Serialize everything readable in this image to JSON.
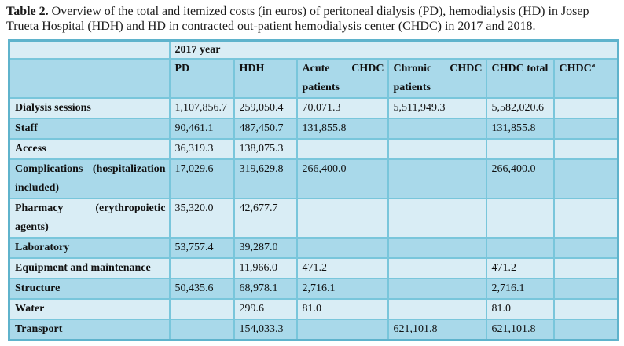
{
  "title": {
    "bold": "Table 2.",
    "text": "Overview of the total and itemized costs (in euros) of peritoneal dialysis (PD), hemodialysis (HD) in Josep Trueta Hospital (HDH) and HD in contracted out-patient hemodialysis center (CHDC) in 2017 and 2018."
  },
  "table": {
    "year_header": "2017 year",
    "columns": [
      "PD",
      "HDH",
      "Acute CHDC patients",
      "Chronic CHDC patients",
      "CHDC total"
    ],
    "last_column": {
      "label": "CHDC",
      "sup": "a"
    },
    "rows": [
      {
        "label": "Dialysis sessions",
        "values": [
          "1,107,856.7",
          "259,050.4",
          "70,071.3",
          "5,511,949.3",
          "5,582,020.6",
          ""
        ]
      },
      {
        "label": "Staff",
        "values": [
          "90,461.1",
          "487,450.7",
          "131,855.8",
          "",
          "131,855.8",
          ""
        ]
      },
      {
        "label": "Access",
        "values": [
          "36,319.3",
          "138,075.3",
          "",
          "",
          "",
          ""
        ]
      },
      {
        "label": "Complications (hospitalization included)",
        "values": [
          "17,029.6",
          "319,629.8",
          "266,400.0",
          "",
          "266,400.0",
          ""
        ]
      },
      {
        "label": "Pharmacy (erythropoietic agents)",
        "values": [
          "35,320.0",
          "42,677.7",
          "",
          "",
          "",
          ""
        ]
      },
      {
        "label": "Laboratory",
        "values": [
          "53,757.4",
          "39,287.0",
          "",
          "",
          "",
          ""
        ]
      },
      {
        "label": "Equipment and maintenance",
        "values": [
          "",
          "11,966.0",
          "471.2",
          "",
          "471.2",
          ""
        ]
      },
      {
        "label": "Structure",
        "values": [
          "50,435.6",
          "68,978.1",
          "2,716.1",
          "",
          "2,716.1",
          ""
        ]
      },
      {
        "label": "Water",
        "values": [
          "",
          "299.6",
          "81.0",
          "",
          "81.0",
          ""
        ]
      },
      {
        "label": "Transport",
        "values": [
          "",
          "154,033.3",
          "",
          "621,101.8",
          "621,101.8",
          ""
        ]
      }
    ],
    "colors": {
      "row_light": "#d9edf5",
      "row_medium": "#a9d9ea",
      "grid_border": "#79c6db",
      "outer_border": "#5fb3cc"
    }
  }
}
